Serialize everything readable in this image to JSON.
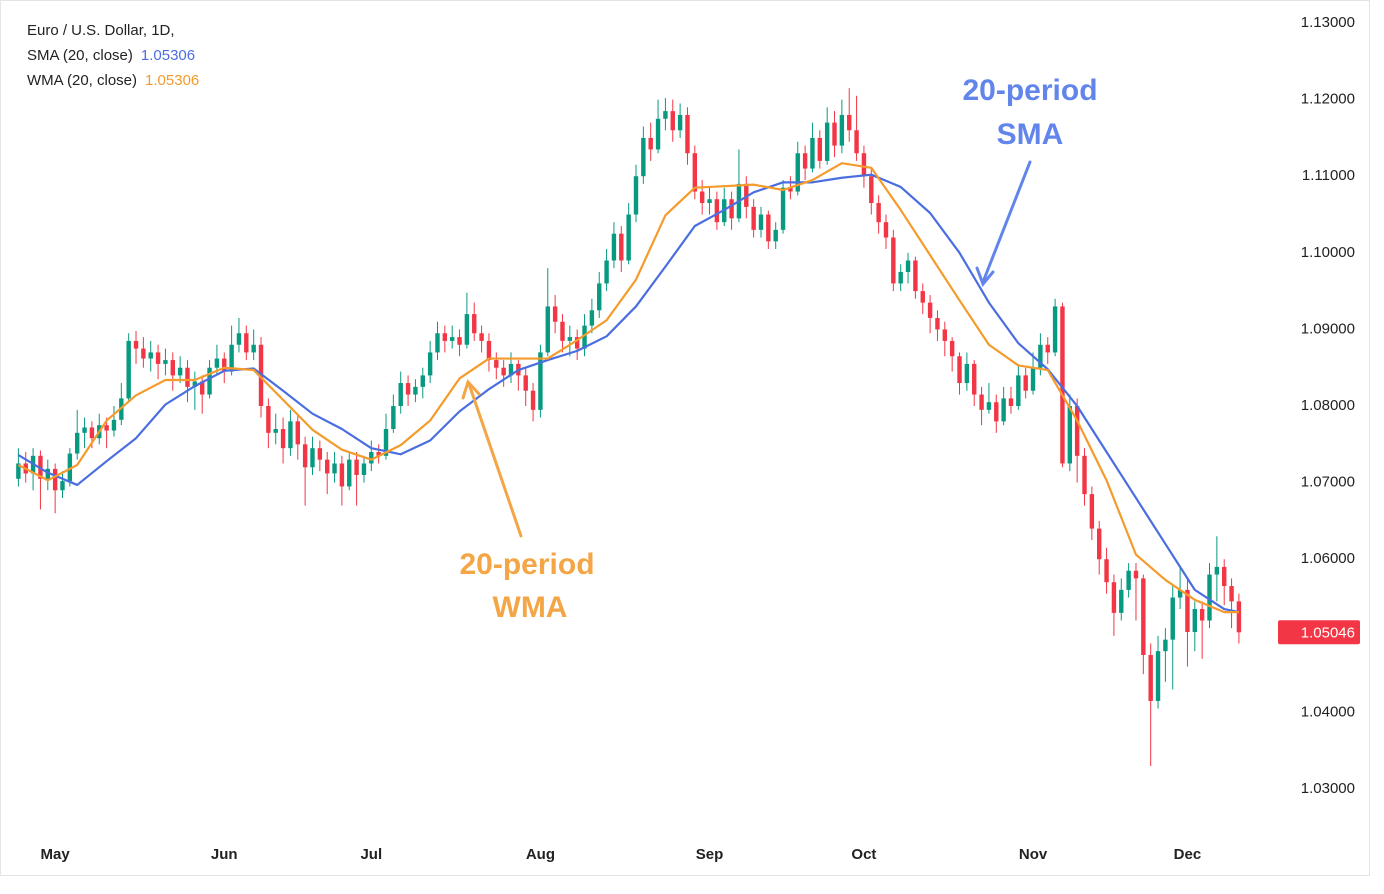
{
  "chart_data": {
    "type": "candlestick",
    "title": "Euro / U.S. Dollar, 1D,",
    "up_color": "#089981",
    "down_color": "#f23645",
    "grid": false,
    "xlim": [
      -2.5,
      170.5
    ],
    "ylim": [
      1.024,
      1.132
    ],
    "xticks": [
      {
        "value": 5,
        "label": "May"
      },
      {
        "value": 28,
        "label": "Jun"
      },
      {
        "value": 48,
        "label": "Jul"
      },
      {
        "value": 71,
        "label": "Aug"
      },
      {
        "value": 94,
        "label": "Sep"
      },
      {
        "value": 115,
        "label": "Oct"
      },
      {
        "value": 138,
        "label": "Nov"
      },
      {
        "value": 159,
        "label": "Dec"
      }
    ],
    "yticks": [
      {
        "value": 1.03,
        "label": "1.03000"
      },
      {
        "value": 1.04,
        "label": "1.04000"
      },
      {
        "value": 1.05,
        "label": "1.05000"
      },
      {
        "value": 1.06,
        "label": "1.06000"
      },
      {
        "value": 1.07,
        "label": "1.07000"
      },
      {
        "value": 1.08,
        "label": "1.08000"
      },
      {
        "value": 1.09,
        "label": "1.09000"
      },
      {
        "value": 1.1,
        "label": "1.10000"
      },
      {
        "value": 1.11,
        "label": "1.11000"
      },
      {
        "value": 1.12,
        "label": "1.12000"
      },
      {
        "value": 1.13,
        "label": "1.13000"
      }
    ],
    "last_price": 1.05046,
    "ohlc": [
      [
        1.0705,
        1.0745,
        1.0695,
        1.0725
      ],
      [
        1.0725,
        1.074,
        1.07,
        1.0712
      ],
      [
        1.0712,
        1.0745,
        1.069,
        1.0735
      ],
      [
        1.0735,
        1.0742,
        1.0665,
        1.0705
      ],
      [
        1.0705,
        1.073,
        1.069,
        1.0718
      ],
      [
        1.0718,
        1.0725,
        1.066,
        1.069
      ],
      [
        1.069,
        1.0715,
        1.068,
        1.0702
      ],
      [
        1.0702,
        1.0745,
        1.0695,
        1.0738
      ],
      [
        1.0738,
        1.0795,
        1.073,
        1.0765
      ],
      [
        1.0765,
        1.0785,
        1.0745,
        1.0772
      ],
      [
        1.0772,
        1.078,
        1.0745,
        1.0758
      ],
      [
        1.0758,
        1.079,
        1.075,
        1.0775
      ],
      [
        1.0775,
        1.0785,
        1.0745,
        1.0768
      ],
      [
        1.0768,
        1.08,
        1.076,
        1.0782
      ],
      [
        1.0782,
        1.083,
        1.0775,
        1.081
      ],
      [
        1.081,
        1.0895,
        1.0805,
        1.0885
      ],
      [
        1.0885,
        1.0898,
        1.0855,
        1.0875
      ],
      [
        1.0875,
        1.089,
        1.085,
        1.0862
      ],
      [
        1.0862,
        1.0885,
        1.0845,
        1.087
      ],
      [
        1.087,
        1.088,
        1.0835,
        1.0855
      ],
      [
        1.0855,
        1.0875,
        1.084,
        1.086
      ],
      [
        1.086,
        1.087,
        1.082,
        1.084
      ],
      [
        1.084,
        1.0865,
        1.083,
        1.085
      ],
      [
        1.085,
        1.086,
        1.0805,
        1.0825
      ],
      [
        1.0825,
        1.0845,
        1.0795,
        1.0832
      ],
      [
        1.0832,
        1.084,
        1.079,
        1.0815
      ],
      [
        1.0815,
        1.086,
        1.081,
        1.085
      ],
      [
        1.085,
        1.088,
        1.084,
        1.0862
      ],
      [
        1.0862,
        1.087,
        1.083,
        1.0845
      ],
      [
        1.0845,
        1.0905,
        1.084,
        1.088
      ],
      [
        1.088,
        1.0915,
        1.087,
        1.0895
      ],
      [
        1.0895,
        1.0905,
        1.086,
        1.087
      ],
      [
        1.087,
        1.09,
        1.086,
        1.088
      ],
      [
        1.088,
        1.089,
        1.0785,
        1.08
      ],
      [
        1.08,
        1.081,
        1.0745,
        1.0765
      ],
      [
        1.0765,
        1.079,
        1.075,
        1.077
      ],
      [
        1.077,
        1.0785,
        1.0725,
        1.0745
      ],
      [
        1.0745,
        1.0795,
        1.0735,
        1.078
      ],
      [
        1.078,
        1.079,
        1.073,
        1.075
      ],
      [
        1.075,
        1.076,
        1.067,
        1.072
      ],
      [
        1.072,
        1.076,
        1.071,
        1.0745
      ],
      [
        1.0745,
        1.0755,
        1.0715,
        1.073
      ],
      [
        1.073,
        1.074,
        1.0685,
        1.0712
      ],
      [
        1.0712,
        1.074,
        1.07,
        1.0725
      ],
      [
        1.0725,
        1.0735,
        1.067,
        1.0695
      ],
      [
        1.0695,
        1.074,
        1.069,
        1.073
      ],
      [
        1.073,
        1.074,
        1.067,
        1.071
      ],
      [
        1.071,
        1.0735,
        1.07,
        1.0725
      ],
      [
        1.0725,
        1.0755,
        1.0715,
        1.074
      ],
      [
        1.074,
        1.075,
        1.0725,
        1.0735
      ],
      [
        1.0735,
        1.079,
        1.073,
        1.077
      ],
      [
        1.077,
        1.0815,
        1.0765,
        1.08
      ],
      [
        1.08,
        1.0845,
        1.079,
        1.083
      ],
      [
        1.083,
        1.084,
        1.08,
        1.0815
      ],
      [
        1.0815,
        1.0835,
        1.0805,
        1.0825
      ],
      [
        1.0825,
        1.085,
        1.081,
        1.084
      ],
      [
        1.084,
        1.0885,
        1.083,
        1.087
      ],
      [
        1.087,
        1.091,
        1.086,
        1.0895
      ],
      [
        1.0895,
        1.0905,
        1.087,
        1.0885
      ],
      [
        1.0885,
        1.0905,
        1.0875,
        1.089
      ],
      [
        1.089,
        1.09,
        1.0865,
        1.088
      ],
      [
        1.088,
        1.0948,
        1.0875,
        1.092
      ],
      [
        1.092,
        1.0935,
        1.0885,
        1.0895
      ],
      [
        1.0895,
        1.0905,
        1.087,
        1.0885
      ],
      [
        1.0885,
        1.0895,
        1.0845,
        1.086
      ],
      [
        1.086,
        1.087,
        1.0835,
        1.085
      ],
      [
        1.085,
        1.086,
        1.0825,
        1.084
      ],
      [
        1.084,
        1.087,
        1.083,
        1.0855
      ],
      [
        1.0855,
        1.086,
        1.082,
        1.084
      ],
      [
        1.084,
        1.085,
        1.08,
        1.082
      ],
      [
        1.082,
        1.083,
        1.078,
        1.0795
      ],
      [
        1.0795,
        1.088,
        1.0785,
        1.087
      ],
      [
        1.087,
        1.098,
        1.0865,
        1.093
      ],
      [
        1.093,
        1.0945,
        1.0895,
        1.091
      ],
      [
        1.091,
        1.092,
        1.087,
        1.0885
      ],
      [
        1.0885,
        1.0905,
        1.0865,
        1.089
      ],
      [
        1.089,
        1.09,
        1.086,
        1.0875
      ],
      [
        1.0875,
        1.092,
        1.0865,
        1.0905
      ],
      [
        1.0905,
        1.094,
        1.0895,
        1.0925
      ],
      [
        1.0925,
        1.0975,
        1.0915,
        1.096
      ],
      [
        1.096,
        1.1005,
        1.095,
        1.099
      ],
      [
        1.099,
        1.104,
        1.098,
        1.1025
      ],
      [
        1.1025,
        1.1035,
        1.0975,
        1.099
      ],
      [
        1.099,
        1.1065,
        1.0985,
        1.105
      ],
      [
        1.105,
        1.1115,
        1.104,
        1.11
      ],
      [
        1.11,
        1.1165,
        1.109,
        1.115
      ],
      [
        1.115,
        1.117,
        1.112,
        1.1135
      ],
      [
        1.1135,
        1.12,
        1.113,
        1.1175
      ],
      [
        1.1175,
        1.1202,
        1.116,
        1.1185
      ],
      [
        1.1185,
        1.12,
        1.1145,
        1.116
      ],
      [
        1.116,
        1.1195,
        1.115,
        1.118
      ],
      [
        1.118,
        1.119,
        1.1115,
        1.113
      ],
      [
        1.113,
        1.114,
        1.107,
        1.108
      ],
      [
        1.108,
        1.1095,
        1.105,
        1.1065
      ],
      [
        1.1065,
        1.1085,
        1.105,
        1.107
      ],
      [
        1.107,
        1.108,
        1.103,
        1.104
      ],
      [
        1.104,
        1.1085,
        1.1035,
        1.107
      ],
      [
        1.107,
        1.108,
        1.103,
        1.1045
      ],
      [
        1.1045,
        1.1135,
        1.104,
        1.109
      ],
      [
        1.109,
        1.11,
        1.1045,
        1.106
      ],
      [
        1.106,
        1.107,
        1.102,
        1.103
      ],
      [
        1.103,
        1.106,
        1.102,
        1.105
      ],
      [
        1.105,
        1.1055,
        1.1005,
        1.1015
      ],
      [
        1.1015,
        1.104,
        1.1005,
        1.103
      ],
      [
        1.103,
        1.1095,
        1.1025,
        1.1085
      ],
      [
        1.1085,
        1.11,
        1.107,
        1.108
      ],
      [
        1.108,
        1.1145,
        1.1075,
        1.113
      ],
      [
        1.113,
        1.114,
        1.1095,
        1.111
      ],
      [
        1.111,
        1.117,
        1.1105,
        1.115
      ],
      [
        1.115,
        1.116,
        1.111,
        1.112
      ],
      [
        1.112,
        1.119,
        1.1115,
        1.117
      ],
      [
        1.117,
        1.1185,
        1.1125,
        1.114
      ],
      [
        1.114,
        1.12,
        1.113,
        1.118
      ],
      [
        1.118,
        1.1215,
        1.1145,
        1.116
      ],
      [
        1.116,
        1.1205,
        1.112,
        1.113
      ],
      [
        1.113,
        1.114,
        1.1085,
        1.11
      ],
      [
        1.11,
        1.111,
        1.105,
        1.1065
      ],
      [
        1.1065,
        1.1075,
        1.1025,
        1.104
      ],
      [
        1.104,
        1.105,
        1.1005,
        1.102
      ],
      [
        1.102,
        1.103,
        1.095,
        1.096
      ],
      [
        1.096,
        1.0985,
        1.095,
        1.0975
      ],
      [
        1.0975,
        1.1,
        1.096,
        1.099
      ],
      [
        1.099,
        1.0995,
        1.094,
        1.095
      ],
      [
        1.095,
        1.096,
        1.092,
        1.0935
      ],
      [
        1.0935,
        1.0945,
        1.0895,
        1.0915
      ],
      [
        1.0915,
        1.0925,
        1.0885,
        1.09
      ],
      [
        1.09,
        1.091,
        1.0865,
        1.0885
      ],
      [
        1.0885,
        1.089,
        1.0845,
        1.0865
      ],
      [
        1.0865,
        1.087,
        1.0815,
        1.083
      ],
      [
        1.083,
        1.087,
        1.082,
        1.0855
      ],
      [
        1.0855,
        1.086,
        1.08,
        1.0815
      ],
      [
        1.0815,
        1.0825,
        1.0775,
        1.0795
      ],
      [
        1.0795,
        1.083,
        1.079,
        1.0805
      ],
      [
        1.0805,
        1.0815,
        1.0765,
        1.078
      ],
      [
        1.078,
        1.0825,
        1.0775,
        1.081
      ],
      [
        1.081,
        1.0825,
        1.079,
        1.08
      ],
      [
        1.08,
        1.0855,
        1.0795,
        1.084
      ],
      [
        1.084,
        1.085,
        1.081,
        1.082
      ],
      [
        1.082,
        1.087,
        1.0815,
        1.085
      ],
      [
        1.085,
        1.0895,
        1.084,
        1.088
      ],
      [
        1.088,
        1.089,
        1.0855,
        1.087
      ],
      [
        1.087,
        1.094,
        1.0865,
        1.093
      ],
      [
        1.093,
        1.0935,
        1.072,
        1.0725
      ],
      [
        1.0725,
        1.0815,
        1.0715,
        1.08
      ],
      [
        1.08,
        1.081,
        1.07,
        1.0735
      ],
      [
        1.0735,
        1.0745,
        1.067,
        1.0685
      ],
      [
        1.0685,
        1.0695,
        1.0625,
        1.064
      ],
      [
        1.064,
        1.065,
        1.058,
        1.06
      ],
      [
        1.06,
        1.0615,
        1.0555,
        1.057
      ],
      [
        1.057,
        1.058,
        1.05,
        1.053
      ],
      [
        1.053,
        1.0575,
        1.052,
        1.056
      ],
      [
        1.056,
        1.0595,
        1.055,
        1.0585
      ],
      [
        1.0585,
        1.0595,
        1.052,
        1.0575
      ],
      [
        1.0575,
        1.058,
        1.045,
        1.0475
      ],
      [
        1.0475,
        1.049,
        1.033,
        1.0415
      ],
      [
        1.0415,
        1.05,
        1.0405,
        1.048
      ],
      [
        1.048,
        1.051,
        1.044,
        1.0495
      ],
      [
        1.0495,
        1.0565,
        1.043,
        1.055
      ],
      [
        1.055,
        1.059,
        1.0535,
        1.056
      ],
      [
        1.056,
        1.0575,
        1.046,
        1.0505
      ],
      [
        1.0505,
        1.0545,
        1.048,
        1.0535
      ],
      [
        1.0535,
        1.0545,
        1.047,
        1.052
      ],
      [
        1.052,
        1.0595,
        1.051,
        1.058
      ],
      [
        1.058,
        1.063,
        1.0545,
        1.059
      ],
      [
        1.059,
        1.06,
        1.054,
        1.0565
      ],
      [
        1.0565,
        1.0575,
        1.051,
        1.0545
      ],
      [
        1.0545,
        1.0555,
        1.049,
        1.05046
      ]
    ],
    "series": [
      {
        "name": "SMA (20, close)",
        "last": 1.05306,
        "color": "#4a6ee0",
        "x": [
          0,
          4,
          8,
          12,
          16,
          20,
          24,
          28,
          32,
          36,
          40,
          44,
          48,
          52,
          56,
          60,
          64,
          68,
          72,
          76,
          80,
          84,
          88,
          92,
          96,
          100,
          104,
          108,
          112,
          116,
          120,
          124,
          128,
          132,
          136,
          140,
          144,
          148,
          152,
          156,
          160,
          164,
          166
        ],
        "values": [
          1.0736,
          1.0713,
          1.0697,
          1.0728,
          1.0758,
          1.0802,
          1.0826,
          1.0846,
          1.0849,
          1.082,
          1.079,
          1.077,
          1.0745,
          1.0737,
          1.0755,
          1.0793,
          1.0822,
          1.0847,
          1.086,
          1.0872,
          1.0891,
          1.093,
          1.0982,
          1.1035,
          1.1056,
          1.1079,
          1.1092,
          1.1092,
          1.1098,
          1.1102,
          1.1086,
          1.1052,
          1.1,
          1.0935,
          1.0882,
          1.0848,
          1.08,
          1.074,
          1.068,
          1.062,
          1.056,
          1.0535,
          1.0531
        ]
      },
      {
        "name": "WMA (20, close)",
        "last": 1.05306,
        "color": "#f59b2b",
        "x": [
          0,
          4,
          8,
          12,
          16,
          20,
          24,
          28,
          32,
          36,
          40,
          44,
          48,
          52,
          56,
          60,
          64,
          68,
          72,
          76,
          80,
          84,
          88,
          92,
          96,
          100,
          104,
          108,
          112,
          116,
          120,
          124,
          128,
          132,
          136,
          140,
          144,
          148,
          152,
          156,
          160,
          164,
          166
        ],
        "values": [
          1.0723,
          1.0703,
          1.0723,
          1.0781,
          1.0814,
          1.0834,
          1.0834,
          1.085,
          1.0847,
          1.0808,
          1.0769,
          1.0743,
          1.073,
          1.0749,
          1.0781,
          1.0836,
          1.0862,
          1.0862,
          1.0862,
          1.0886,
          1.0912,
          1.0965,
          1.1049,
          1.1085,
          1.1087,
          1.1089,
          1.1082,
          1.1095,
          1.1117,
          1.1111,
          1.1056,
          1.0997,
          1.0938,
          1.088,
          1.0853,
          1.0847,
          1.0781,
          1.0703,
          1.0606,
          1.0573,
          1.0547,
          1.0531,
          1.0531
        ]
      }
    ],
    "annotations": [
      {
        "lines": [
          "20-period",
          "SMA"
        ],
        "color": "#6285ec"
      },
      {
        "lines": [
          "20-period",
          "WMA"
        ],
        "color": "#f4a545"
      }
    ]
  }
}
